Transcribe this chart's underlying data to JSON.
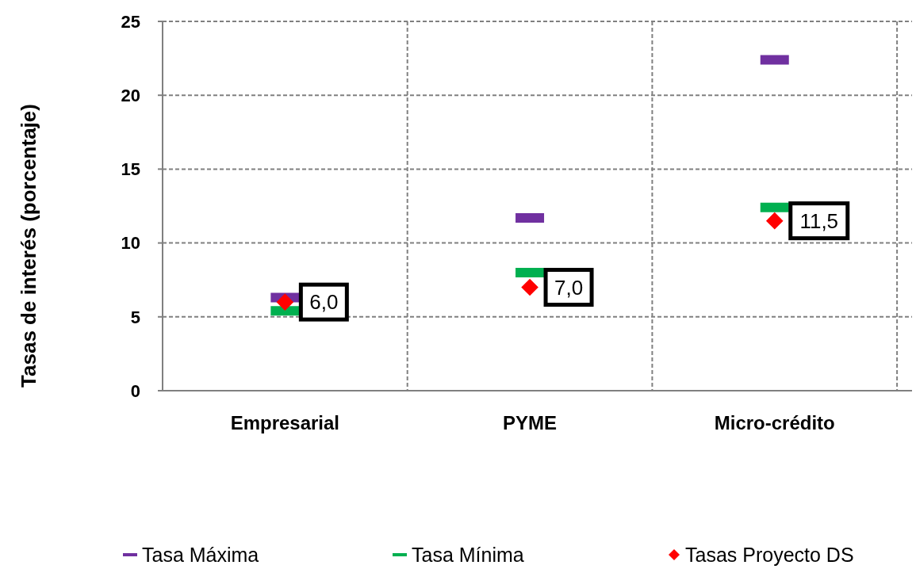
{
  "chart_data": {
    "type": "scatter",
    "ylabel": "Tasas de interés (porcentaje)",
    "categories": [
      "Empresarial",
      "PYME",
      "Micro-crédito"
    ],
    "series": [
      {
        "name": "Tasa Máxima",
        "color": "#7030a0",
        "values": [
          6.3,
          11.7,
          22.4
        ]
      },
      {
        "name": "Tasa Mínima",
        "color": "#00b050",
        "values": [
          5.4,
          8.0,
          12.4
        ]
      },
      {
        "name": "Tasas Proyecto DS",
        "color": "#ff0000",
        "marker": "diamond",
        "values": [
          6.0,
          7.0,
          11.5
        ],
        "value_labels": [
          "6,0",
          "7,0",
          "11,5"
        ]
      }
    ],
    "ylim": [
      0,
      25
    ],
    "yticks": [
      0,
      5,
      10,
      15,
      20,
      25
    ],
    "grid": true,
    "legend": "bottom"
  }
}
